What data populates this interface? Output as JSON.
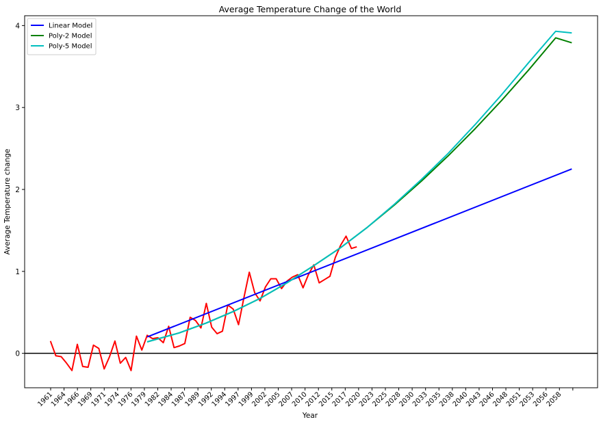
{
  "chart_data": {
    "type": "line",
    "title": "Average Temperature Change of the World",
    "xlabel": "Year",
    "ylabel": "Average Temperature change",
    "xlim": [
      1956.2,
      2062.8
    ],
    "ylim": [
      -0.42,
      4.12
    ],
    "yticks": [
      0,
      1,
      2,
      3,
      4
    ],
    "xtick_labels": [
      "1961",
      "1964",
      "1966",
      "1969",
      "1971",
      "1974",
      "1976",
      "1979",
      "1982",
      "1984",
      "1987",
      "1989",
      "1992",
      "1994",
      "1997",
      "1999",
      "2002",
      "2005",
      "2007",
      "2010",
      "2012",
      "2015",
      "2017",
      "2020",
      "2023",
      "2025",
      "2028",
      "2030",
      "2033",
      "2035",
      "2038",
      "2040",
      "2043",
      "2046",
      "2048",
      "2051",
      "2053",
      "2056",
      "2058"
    ],
    "zero_line": true,
    "grid": false,
    "legend_position": "top-left",
    "series": [
      {
        "name": "Linear Model",
        "color": "#0000ff",
        "x": [
          1979,
          2058
        ],
        "y": [
          0.2,
          2.25
        ]
      },
      {
        "name": "Poly-2 Model",
        "color": "#008000",
        "x": [
          1979,
          1985,
          1990,
          1995,
          2000,
          2005,
          2010,
          2015,
          2020,
          2025,
          2030,
          2035,
          2040,
          2045,
          2050,
          2055,
          2058
        ],
        "y": [
          0.14,
          0.25,
          0.37,
          0.51,
          0.67,
          0.86,
          1.07,
          1.29,
          1.54,
          1.81,
          2.1,
          2.41,
          2.74,
          3.09,
          3.46,
          3.85,
          3.79
        ]
      },
      {
        "name": "Poly-5 Model",
        "color": "#00bfbf",
        "x": [
          1979,
          1985,
          1990,
          1995,
          2000,
          2005,
          2010,
          2015,
          2020,
          2025,
          2030,
          2035,
          2040,
          2045,
          2050,
          2055,
          2058
        ],
        "y": [
          0.14,
          0.25,
          0.37,
          0.51,
          0.67,
          0.86,
          1.07,
          1.29,
          1.54,
          1.82,
          2.12,
          2.44,
          2.79,
          3.16,
          3.55,
          3.93,
          3.91
        ]
      },
      {
        "name": "",
        "color": "#ff0000",
        "x": [
          1961,
          1962,
          1963,
          1964,
          1965,
          1966,
          1967,
          1968,
          1969,
          1970,
          1971,
          1972,
          1973,
          1974,
          1975,
          1976,
          1977,
          1978,
          1979,
          1980,
          1981,
          1982,
          1983,
          1984,
          1985,
          1986,
          1987,
          1988,
          1989,
          1990,
          1991,
          1992,
          1993,
          1994,
          1995,
          1996,
          1997,
          1998,
          1999,
          2000,
          2001,
          2002,
          2003,
          2004,
          2005,
          2006,
          2007,
          2008,
          2009,
          2010,
          2011,
          2012,
          2013,
          2014,
          2015,
          2016,
          2017,
          2018
        ],
        "y": [
          0.15,
          -0.03,
          -0.04,
          -0.12,
          -0.21,
          0.11,
          -0.16,
          -0.17,
          0.1,
          0.06,
          -0.19,
          -0.04,
          0.15,
          -0.12,
          -0.05,
          -0.21,
          0.21,
          0.04,
          0.22,
          0.18,
          0.19,
          0.13,
          0.33,
          0.07,
          0.09,
          0.12,
          0.44,
          0.4,
          0.31,
          0.61,
          0.32,
          0.24,
          0.27,
          0.59,
          0.54,
          0.35,
          0.68,
          0.99,
          0.74,
          0.64,
          0.81,
          0.91,
          0.91,
          0.79,
          0.88,
          0.93,
          0.96,
          0.8,
          0.96,
          1.08,
          0.86,
          0.9,
          0.94,
          1.17,
          1.32,
          1.43,
          1.28,
          1.3
        ]
      }
    ]
  }
}
